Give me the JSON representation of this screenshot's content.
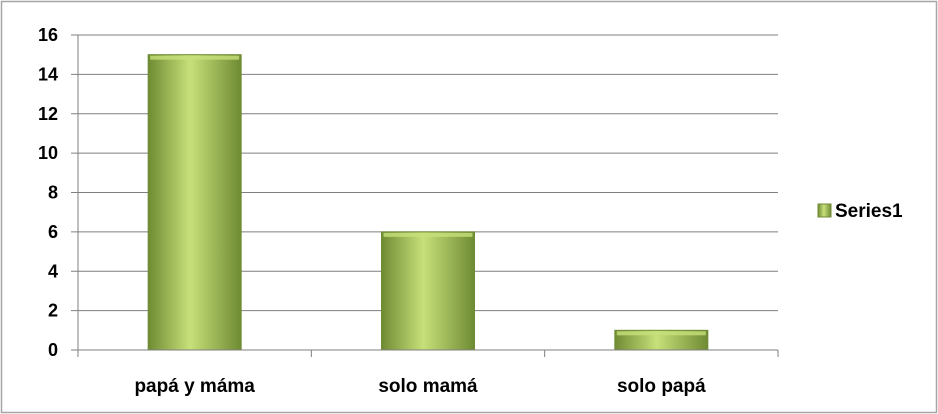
{
  "chart_data": {
    "type": "bar",
    "categories": [
      "papá y máma",
      "solo mamá",
      "solo papá"
    ],
    "series": [
      {
        "name": "Series1",
        "values": [
          15,
          6,
          1
        ]
      }
    ],
    "ylim": [
      0,
      16
    ],
    "yticks": [
      0,
      2,
      4,
      6,
      8,
      10,
      12,
      14,
      16
    ],
    "grid": true,
    "legend": "right",
    "colors": {
      "bar_light": "#c7e07a",
      "bar_mid": "#9bbb59",
      "bar_dark": "#6f8b33",
      "gridline": "#7f7f7f",
      "axis": "#7f7f7f",
      "border": "#a6a6a6"
    }
  }
}
